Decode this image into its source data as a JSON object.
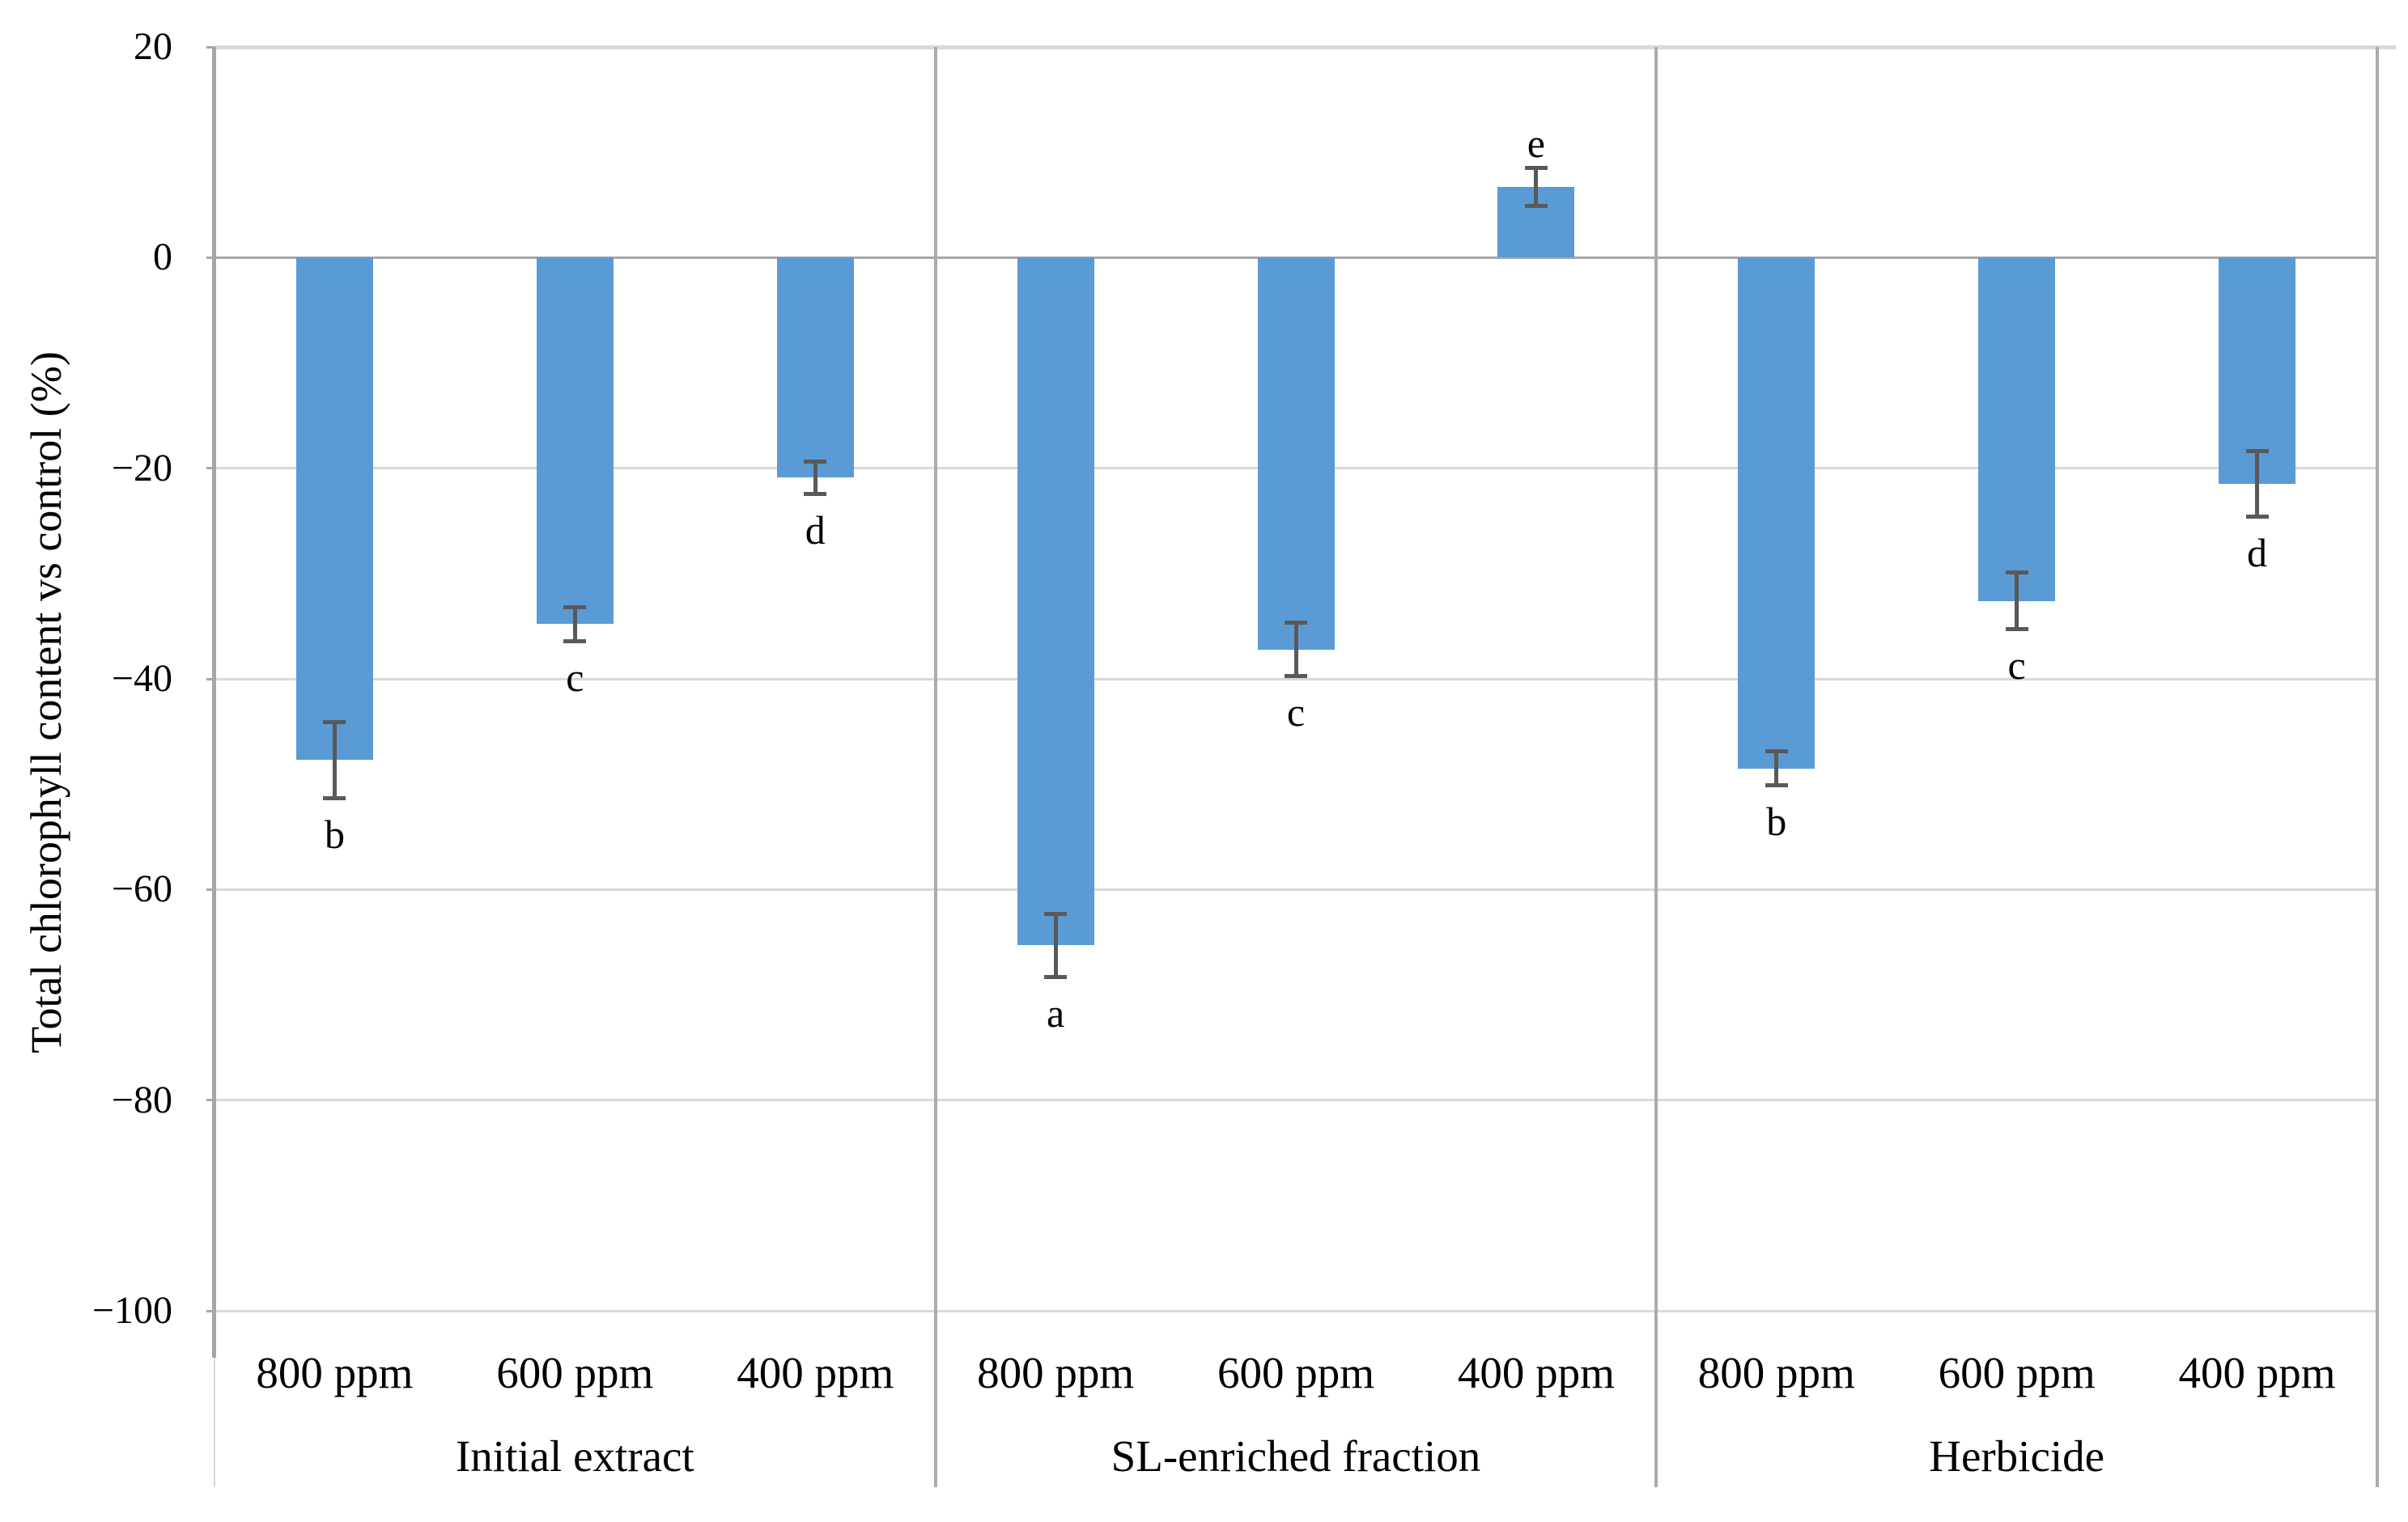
{
  "chart_data": {
    "type": "bar",
    "title": "",
    "xlabel": "",
    "ylabel": "Total chlorophyll content vs control (%)",
    "ylim": [
      -100,
      20
    ],
    "grid": true,
    "legend": false,
    "yticks": [
      {
        "label": "20",
        "value": 20
      },
      {
        "label": "0",
        "value": 0
      },
      {
        "label": "−20",
        "value": -20
      },
      {
        "label": "−40",
        "value": -40
      },
      {
        "label": "−60",
        "value": -60
      },
      {
        "label": "−80",
        "value": -80
      },
      {
        "label": "−100",
        "value": -100
      }
    ],
    "groups": [
      {
        "label": "Initial extract",
        "bars": [
          {
            "category": "800 ppm",
            "value": -47.7,
            "error": 3.8,
            "letter": "b"
          },
          {
            "category": "600 ppm",
            "value": -34.8,
            "error": 1.8,
            "letter": "c"
          },
          {
            "category": "400 ppm",
            "value": -20.9,
            "error": 1.7,
            "letter": "d"
          }
        ]
      },
      {
        "label": "SL-enriched fraction",
        "bars": [
          {
            "category": "800 ppm",
            "value": -65.3,
            "error": 3.2,
            "letter": "a"
          },
          {
            "category": "600 ppm",
            "value": -37.2,
            "error": 2.7,
            "letter": "c"
          },
          {
            "category": "400 ppm",
            "value": 6.7,
            "error": 2.0,
            "letter": "e"
          }
        ]
      },
      {
        "label": "Herbicide",
        "bars": [
          {
            "category": "800 ppm",
            "value": -48.5,
            "error": 1.8,
            "letter": "b"
          },
          {
            "category": "600 ppm",
            "value": -32.6,
            "error": 2.9,
            "letter": "c"
          },
          {
            "category": "400 ppm",
            "value": -21.5,
            "error": 3.3,
            "letter": "d"
          }
        ]
      }
    ],
    "colors": {
      "bar": "#5B9BD5",
      "error_bar": "#595959",
      "gridline": "#D9D9D9",
      "zero_line": "#A8A8A8",
      "axis_line": "#A6A6A6",
      "divider": "#ABABAB",
      "text": "#000000",
      "background": "#FFFFFF"
    }
  }
}
